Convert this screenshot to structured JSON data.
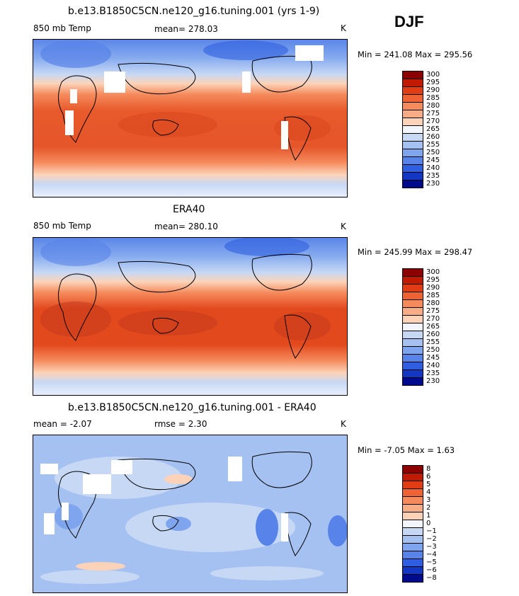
{
  "season": "DJF",
  "panels": [
    {
      "title": "b.e13.B1850C5CN.ne120_g16.tuning.001 (yrs 1-9)",
      "left": "850 mb Temp",
      "mid": "mean=  278.03",
      "right": "K",
      "minmax": "Min = 241.08 Max = 295.56",
      "type": "temp",
      "missing": true
    },
    {
      "title": "ERA40",
      "left": "850 mb Temp",
      "mid": "mean=  280.10",
      "right": "K",
      "minmax": "Min = 245.99 Max = 298.47",
      "type": "temp",
      "missing": false
    },
    {
      "title": "b.e13.B1850C5CN.ne120_g16.tuning.001 - ERA40",
      "left": "mean =   -2.07",
      "mid": "rmse =    2.30",
      "right": "K",
      "minmax": "Min =   -7.05 Max =    1.63",
      "type": "diff",
      "missing": true
    }
  ],
  "colorbars": {
    "temp": {
      "labels": [
        "300",
        "295",
        "290",
        "285",
        "280",
        "275",
        "270",
        "265",
        "260",
        "255",
        "250",
        "245",
        "240",
        "235",
        "230"
      ],
      "colors": [
        "#8c0000",
        "#c21a00",
        "#e03d14",
        "#ee6233",
        "#f58a5c",
        "#f9ad86",
        "#fcd3b8",
        "#f2f5fb",
        "#c7d8f5",
        "#a4c1f2",
        "#7fa5ee",
        "#5883e8",
        "#2f5fe0",
        "#1337c4",
        "#000a8c"
      ]
    },
    "diff": {
      "labels": [
        "8",
        "6",
        "5",
        "4",
        "3",
        "2",
        "1",
        "0",
        "−1",
        "−2",
        "−3",
        "−4",
        "−5",
        "−6",
        "−8"
      ],
      "colors": [
        "#8c0000",
        "#c21a00",
        "#e03d14",
        "#ee6233",
        "#f58a5c",
        "#f9ad86",
        "#fcd3b8",
        "#f2f5fb",
        "#c7d8f5",
        "#a4c1f2",
        "#7fa5ee",
        "#5883e8",
        "#2f5fe0",
        "#1337c4",
        "#000a8c"
      ]
    }
  }
}
